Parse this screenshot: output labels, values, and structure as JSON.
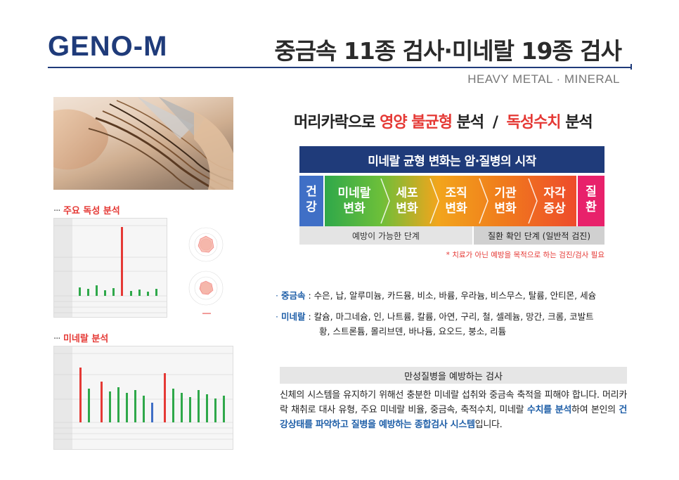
{
  "header": {
    "brand": "GENO-M",
    "title": "중금속 11종 검사·미네랄 19종 검사",
    "subtitle": "HEAVY METAL · MINERAL"
  },
  "left": {
    "toxic_label": "주요 독성 분석",
    "mineral_label": "미네랄 분석",
    "label_prefix": "···"
  },
  "headline": {
    "part1": "머리카락으로",
    "part2": "영양 불균형",
    "part3": "분석",
    "slash": "/",
    "part4": "독성수치",
    "part5": "분석"
  },
  "banner": "미네랄 균형 변화는 암·질병의 시작",
  "stages": [
    {
      "line1": "건",
      "line2": "강",
      "color": "#3f6fc6"
    },
    {
      "line1": "미네랄",
      "line2": "변화",
      "color": "#2fa84a"
    },
    {
      "line1": "세포",
      "line2": "변화",
      "color": "#6cbf3a"
    },
    {
      "line1": "조직",
      "line2": "변화",
      "color": "#f2a51c"
    },
    {
      "line1": "기관",
      "line2": "변화",
      "color": "#f07d1c"
    },
    {
      "line1": "자각",
      "line2": "증상",
      "color": "#ee4b2b"
    },
    {
      "line1": "질",
      "line2": "환",
      "color": "#e8216b"
    }
  ],
  "phases": {
    "left": "예방이 가능한 단계",
    "right": "질환 확인 단계 (일반적 검진)"
  },
  "note": "* 치료가 아닌 예방을 목적으로 하는 검진/검사 필요",
  "heavy_metals": {
    "key": "중금속",
    "text": ": 수은, 납, 알루미늄, 카드뮴, 비소, 바륨, 우라늄, 비스무스, 탈륨, 안티몬, 세슘"
  },
  "minerals": {
    "key": "미네랄",
    "text1": ": 칼슘, 마그네슘, 인, 나트륨, 칼륨, 아연, 구리, 철, 셀레늄, 망간, 크롬, 코발트",
    "text2": "황, 스트론튬, 몰리브덴, 바나듐, 요오드, 붕소, 리튬"
  },
  "sub_banner": "만성질병을 예방하는 검사",
  "body": {
    "t1": "신체의 시스템을 유지하기 위해선 충분한 미네랄 섭취와 중금속 축적을 피해야 합니다. 머리카락 채취로 대사 유형, 주요 미네랄 비율, 중금속, 축적수치, 미네랄 ",
    "b1": "수치를 분석",
    "t2": "하여 본인의 ",
    "b2": "건강상태를 파악하고 질병을 예방하는 종합검사 시스템",
    "t3": "입니다."
  },
  "colors": {
    "brand": "#1f3b7a",
    "accent_red": "#e53935",
    "accent_blue": "#1f5fa8"
  }
}
